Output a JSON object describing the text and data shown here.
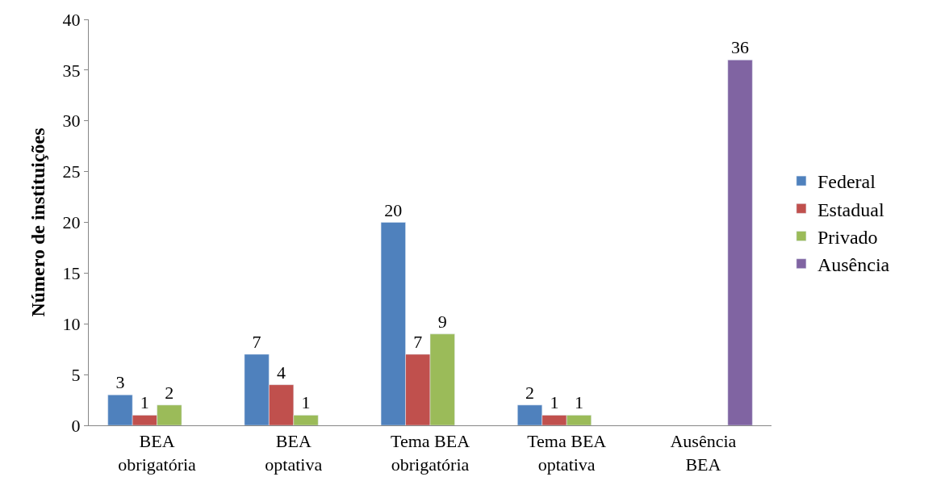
{
  "chart_data": {
    "type": "bar",
    "ylabel": "Número de instituições",
    "categories": [
      "BEA\nobrigatória",
      "BEA\noptativa",
      "Tema BEA\nobrigatória",
      "Tema BEA\noptativa",
      "Ausência\nBEA"
    ],
    "series": [
      {
        "name": "Federal",
        "color": "#4f81bd",
        "values": [
          3,
          7,
          20,
          2,
          null
        ]
      },
      {
        "name": "Estadual",
        "color": "#c0504d",
        "values": [
          1,
          4,
          7,
          1,
          null
        ]
      },
      {
        "name": "Privado",
        "color": "#9bbb59",
        "values": [
          2,
          1,
          9,
          1,
          null
        ]
      },
      {
        "name": "Ausência",
        "color": "#8064a2",
        "values": [
          null,
          null,
          null,
          null,
          36
        ]
      }
    ],
    "ylim": [
      0,
      40
    ],
    "yticks": [
      0,
      5,
      10,
      15,
      20,
      25,
      30,
      35,
      40
    ],
    "data_labels": true,
    "legend": "right",
    "grid": false
  }
}
